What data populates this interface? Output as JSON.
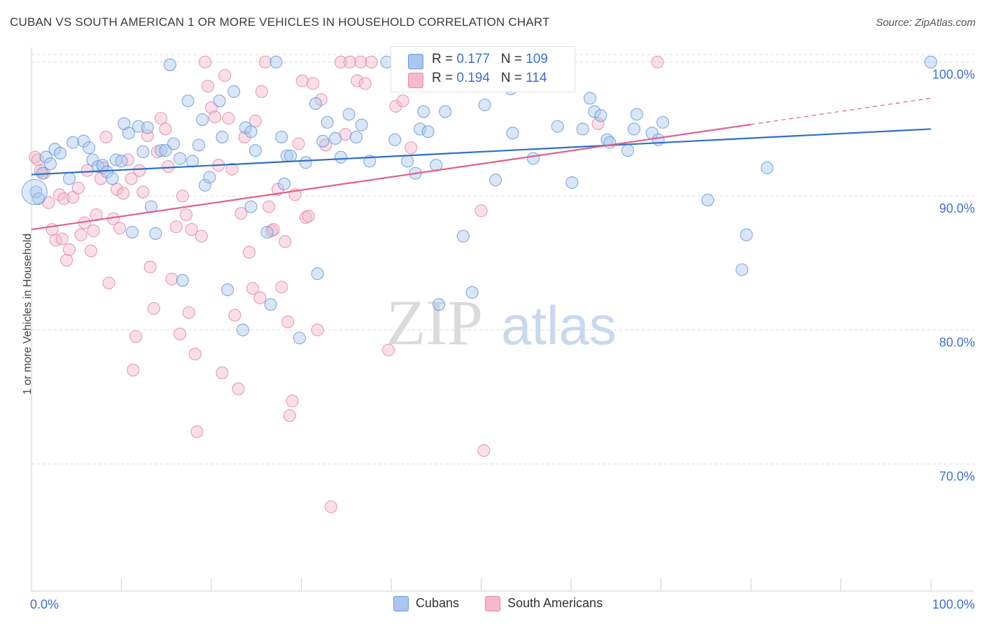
{
  "title": "CUBAN VS SOUTH AMERICAN 1 OR MORE VEHICLES IN HOUSEHOLD CORRELATION CHART",
  "source": "Source: ZipAtlas.com",
  "watermark": {
    "zip": "ZIP",
    "atlas": "atlas"
  },
  "legend": {
    "rows": [
      {
        "r_label": "R = ",
        "r_value": "0.177",
        "n_label": "N = ",
        "n_value": "109"
      },
      {
        "r_label": "R = ",
        "r_value": "0.194",
        "n_label": "N = ",
        "n_value": "114"
      }
    ]
  },
  "bottom_legend": [
    "Cubans",
    "South Americans"
  ],
  "colors": {
    "cubans_fill": "#a9c7ee",
    "cubans_stroke": "#6e9bd8",
    "cubans_line": "#2f6ec7",
    "sa_fill": "#f5b9cb",
    "sa_stroke": "#e68aa6",
    "sa_line": "#e0608c",
    "tick_label": "#3d6fd6",
    "grid": "#dcdcdc"
  },
  "chart_data": {
    "type": "scatter",
    "xlabel": "",
    "ylabel": "1 or more Vehicles in Household",
    "xlim": [
      0,
      100
    ],
    "ylim": [
      60.5,
      101.5
    ],
    "x_tick_labels": [
      {
        "value": 0,
        "label": "0.0%"
      },
      {
        "value": 100,
        "label": "100.0%"
      }
    ],
    "y_tick_labels": [
      {
        "value": 100,
        "label": "100.0%"
      },
      {
        "value": 90,
        "label": "90.0%"
      },
      {
        "value": 80,
        "label": "80.0%"
      },
      {
        "value": 70,
        "label": "70.0%"
      }
    ],
    "grid": "horizontal-dashed",
    "legend_position": "top-center",
    "series": [
      {
        "name": "Cubans",
        "trend": {
          "x0": 0,
          "y0": 91.6,
          "x1": 100,
          "y1": 95.0
        },
        "points": [
          [
            0.5,
            90.3
          ],
          [
            0.8,
            89.8
          ],
          [
            1.2,
            91.7
          ],
          [
            1.6,
            92.9
          ],
          [
            2.1,
            92.4
          ],
          [
            2.6,
            93.5
          ],
          [
            3.2,
            93.2
          ],
          [
            4.2,
            91.3
          ],
          [
            4.6,
            94.0
          ],
          [
            5.8,
            94.1
          ],
          [
            6.4,
            93.6
          ],
          [
            6.8,
            92.7
          ],
          [
            7.4,
            92.2
          ],
          [
            7.9,
            92.3
          ],
          [
            8.4,
            91.8
          ],
          [
            9.0,
            91.3
          ],
          [
            9.4,
            92.7
          ],
          [
            10.0,
            92.6
          ],
          [
            10.3,
            95.4
          ],
          [
            10.8,
            94.7
          ],
          [
            11.2,
            87.3
          ],
          [
            11.9,
            95.2
          ],
          [
            12.4,
            93.3
          ],
          [
            12.9,
            95.1
          ],
          [
            13.3,
            89.2
          ],
          [
            13.8,
            87.2
          ],
          [
            14.4,
            93.4
          ],
          [
            14.9,
            93.4
          ],
          [
            15.4,
            99.8
          ],
          [
            15.8,
            93.9
          ],
          [
            16.5,
            92.8
          ],
          [
            16.8,
            83.7
          ],
          [
            17.4,
            97.1
          ],
          [
            17.9,
            92.6
          ],
          [
            18.6,
            93.8
          ],
          [
            19.0,
            95.7
          ],
          [
            19.3,
            90.8
          ],
          [
            19.8,
            91.4
          ],
          [
            20.9,
            97.1
          ],
          [
            21.2,
            94.4
          ],
          [
            21.8,
            83.0
          ],
          [
            22.5,
            97.8
          ],
          [
            23.5,
            80.0
          ],
          [
            23.8,
            95.1
          ],
          [
            24.4,
            94.8
          ],
          [
            24.9,
            93.4
          ],
          [
            24.4,
            89.2
          ],
          [
            26.2,
            87.3
          ],
          [
            26.6,
            81.9
          ],
          [
            27.2,
            100.0
          ],
          [
            27.8,
            94.4
          ],
          [
            28.1,
            90.9
          ],
          [
            28.4,
            93.0
          ],
          [
            28.8,
            93.0
          ],
          [
            29.8,
            79.4
          ],
          [
            30.5,
            92.5
          ],
          [
            31.6,
            96.9
          ],
          [
            31.8,
            84.2
          ],
          [
            32.4,
            94.1
          ],
          [
            32.9,
            95.5
          ],
          [
            33.8,
            94.3
          ],
          [
            34.4,
            92.9
          ],
          [
            35.3,
            96.1
          ],
          [
            36.1,
            94.4
          ],
          [
            36.7,
            95.3
          ],
          [
            37.6,
            92.6
          ],
          [
            39.5,
            100.0
          ],
          [
            40.4,
            94.2
          ],
          [
            41.8,
            92.6
          ],
          [
            42.7,
            91.7
          ],
          [
            43.2,
            95.0
          ],
          [
            43.6,
            96.3
          ],
          [
            44.1,
            94.8
          ],
          [
            45.0,
            92.3
          ],
          [
            45.3,
            81.9
          ],
          [
            46.0,
            96.3
          ],
          [
            48.0,
            87.0
          ],
          [
            49.0,
            82.8
          ],
          [
            50.4,
            96.8
          ],
          [
            51.6,
            91.2
          ],
          [
            53.3,
            98.0
          ],
          [
            53.5,
            94.7
          ],
          [
            54.8,
            99.4
          ],
          [
            55.8,
            92.8
          ],
          [
            58.5,
            95.2
          ],
          [
            60.1,
            91.0
          ],
          [
            61.3,
            95.0
          ],
          [
            62.1,
            97.3
          ],
          [
            62.6,
            96.3
          ],
          [
            63.3,
            96.0
          ],
          [
            64.0,
            94.2
          ],
          [
            64.3,
            94.0
          ],
          [
            66.3,
            93.4
          ],
          [
            67.0,
            95.0
          ],
          [
            67.3,
            96.1
          ],
          [
            69.0,
            94.7
          ],
          [
            69.7,
            94.2
          ],
          [
            70.2,
            95.5
          ],
          [
            75.2,
            89.7
          ],
          [
            79.0,
            84.5
          ],
          [
            79.5,
            87.1
          ],
          [
            81.8,
            92.1
          ],
          [
            100.0,
            100.0
          ]
        ]
      },
      {
        "name": "South Americans",
        "trend": {
          "x0": 0,
          "y0": 87.5,
          "x1": 100,
          "y1": 97.3,
          "solid_until_x": 80
        },
        "points": [
          [
            0.4,
            92.9
          ],
          [
            0.7,
            92.7
          ],
          [
            1.0,
            91.9
          ],
          [
            1.4,
            91.7
          ],
          [
            1.9,
            89.5
          ],
          [
            2.3,
            87.5
          ],
          [
            2.7,
            86.7
          ],
          [
            3.1,
            90.1
          ],
          [
            3.4,
            86.8
          ],
          [
            3.6,
            89.8
          ],
          [
            3.9,
            85.2
          ],
          [
            4.2,
            86.0
          ],
          [
            4.6,
            89.9
          ],
          [
            5.2,
            90.6
          ],
          [
            5.5,
            87.1
          ],
          [
            5.9,
            88.0
          ],
          [
            6.2,
            91.9
          ],
          [
            6.6,
            85.9
          ],
          [
            6.9,
            87.4
          ],
          [
            7.2,
            88.6
          ],
          [
            7.7,
            91.3
          ],
          [
            8.0,
            92.1
          ],
          [
            8.3,
            94.4
          ],
          [
            8.6,
            83.5
          ],
          [
            9.1,
            88.3
          ],
          [
            9.5,
            90.5
          ],
          [
            9.8,
            87.6
          ],
          [
            10.2,
            90.2
          ],
          [
            10.7,
            92.7
          ],
          [
            11.1,
            91.3
          ],
          [
            11.3,
            77.0
          ],
          [
            11.6,
            79.5
          ],
          [
            12.0,
            91.9
          ],
          [
            12.4,
            90.3
          ],
          [
            12.9,
            94.5
          ],
          [
            13.2,
            84.7
          ],
          [
            13.6,
            81.6
          ],
          [
            14.0,
            93.3
          ],
          [
            14.4,
            95.8
          ],
          [
            14.9,
            95.0
          ],
          [
            15.2,
            92.2
          ],
          [
            15.6,
            83.8
          ],
          [
            16.1,
            87.7
          ],
          [
            16.5,
            79.7
          ],
          [
            16.8,
            90.0
          ],
          [
            17.2,
            88.6
          ],
          [
            17.5,
            81.3
          ],
          [
            17.8,
            87.5
          ],
          [
            18.2,
            78.2
          ],
          [
            18.4,
            72.4
          ],
          [
            18.9,
            87.0
          ],
          [
            19.3,
            100.0
          ],
          [
            19.6,
            98.2
          ],
          [
            20.0,
            96.6
          ],
          [
            20.4,
            95.9
          ],
          [
            20.8,
            92.3
          ],
          [
            21.2,
            76.8
          ],
          [
            21.5,
            99.0
          ],
          [
            21.9,
            95.8
          ],
          [
            22.3,
            92.0
          ],
          [
            22.6,
            81.1
          ],
          [
            23.0,
            75.6
          ],
          [
            23.3,
            88.7
          ],
          [
            23.7,
            94.4
          ],
          [
            24.2,
            85.8
          ],
          [
            24.6,
            83.1
          ],
          [
            24.9,
            95.6
          ],
          [
            25.4,
            82.4
          ],
          [
            25.6,
            97.8
          ],
          [
            26.0,
            100.0
          ],
          [
            26.4,
            89.2
          ],
          [
            26.7,
            87.4
          ],
          [
            26.9,
            87.5
          ],
          [
            27.4,
            90.5
          ],
          [
            27.8,
            83.2
          ],
          [
            28.2,
            86.6
          ],
          [
            28.5,
            80.6
          ],
          [
            28.7,
            73.6
          ],
          [
            29.0,
            74.7
          ],
          [
            29.3,
            90.1
          ],
          [
            29.7,
            93.9
          ],
          [
            30.1,
            98.6
          ],
          [
            30.5,
            88.4
          ],
          [
            30.8,
            88.5
          ],
          [
            31.3,
            98.4
          ],
          [
            31.8,
            80.0
          ],
          [
            32.2,
            97.2
          ],
          [
            32.7,
            93.8
          ],
          [
            33.3,
            66.8
          ],
          [
            34.4,
            100.0
          ],
          [
            34.9,
            94.6
          ],
          [
            35.4,
            100.0
          ],
          [
            36.2,
            98.6
          ],
          [
            36.6,
            100.0
          ],
          [
            37.1,
            98.4
          ],
          [
            37.8,
            100.0
          ],
          [
            39.7,
            78.5
          ],
          [
            40.5,
            96.7
          ],
          [
            41.3,
            97.1
          ],
          [
            42.2,
            93.6
          ],
          [
            50.0,
            88.9
          ],
          [
            50.3,
            71.0
          ],
          [
            53.6,
            100.0
          ],
          [
            59.3,
            100.0
          ],
          [
            63.0,
            95.4
          ],
          [
            69.6,
            100.0
          ]
        ]
      }
    ]
  }
}
